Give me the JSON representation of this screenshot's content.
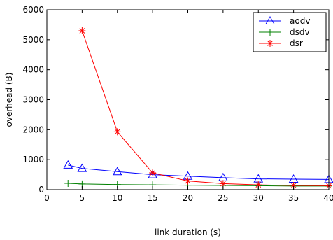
{
  "chart_data": {
    "type": "line",
    "title": "",
    "xlabel": "link duration (s)",
    "ylabel": "overhead (B)",
    "xlim": [
      0,
      40
    ],
    "ylim": [
      0,
      6000
    ],
    "xticks": [
      0,
      5,
      10,
      15,
      20,
      25,
      30,
      35,
      40
    ],
    "yticks": [
      0,
      1000,
      2000,
      3000,
      4000,
      5000,
      6000
    ],
    "grid": false,
    "legend_position": "top-right",
    "series": [
      {
        "name": "aodv",
        "color": "#0000ff",
        "marker": "triangle",
        "x": [
          3,
          5,
          10,
          15,
          20,
          25,
          30,
          35,
          40
        ],
        "y": [
          820,
          710,
          600,
          500,
          450,
          400,
          360,
          350,
          340
        ]
      },
      {
        "name": "dsdv",
        "color": "#008000",
        "marker": "plus",
        "x": [
          3,
          5,
          10,
          15,
          20,
          25,
          30,
          35,
          40
        ],
        "y": [
          210,
          190,
          170,
          160,
          150,
          140,
          130,
          120,
          120
        ]
      },
      {
        "name": "dsr",
        "color": "#ff0000",
        "marker": "asterisk",
        "x": [
          5,
          10,
          15,
          20,
          25,
          30,
          35,
          40
        ],
        "y": [
          5300,
          1930,
          560,
          290,
          200,
          160,
          140,
          130
        ]
      }
    ]
  }
}
